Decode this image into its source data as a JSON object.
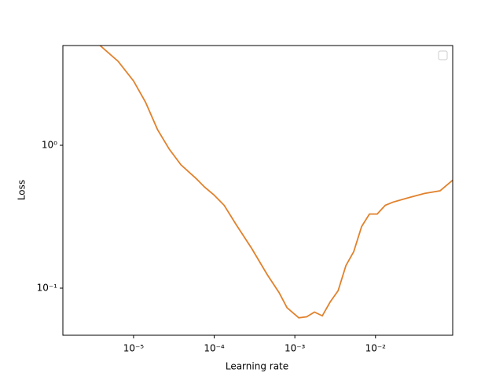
{
  "chart_data": {
    "type": "line",
    "xlabel": "Learning rate",
    "ylabel": "Loss",
    "x": [
      3.85e-06,
      6.44e-06,
      1e-05,
      1.41e-05,
      1.98e-05,
      2.77e-05,
      3.87e-05,
      6.07e-05,
      7.59e-05,
      9.9e-05,
      0.000133,
      0.000186,
      0.000291,
      0.000456,
      0.000638,
      0.0008,
      0.00112,
      0.0014,
      0.00175,
      0.00219,
      0.00274,
      0.00344,
      0.0043,
      0.00537,
      0.00673,
      0.00841,
      0.0105,
      0.0132,
      0.0165,
      0.0258,
      0.0405,
      0.0632,
      0.0906
    ],
    "series": [
      {
        "color": "#e1812c",
        "values": [
          4.99,
          3.87,
          2.82,
          2.0,
          1.29,
          0.94,
          0.73,
          0.58,
          0.51,
          0.45,
          0.38,
          0.28,
          0.19,
          0.124,
          0.093,
          0.073,
          0.062,
          0.063,
          0.068,
          0.064,
          0.08,
          0.096,
          0.144,
          0.18,
          0.27,
          0.33,
          0.33,
          0.38,
          0.4,
          0.43,
          0.46,
          0.48,
          0.57
        ]
      }
    ],
    "xscale": "log",
    "yscale": "log",
    "xlim": [
      1.33e-06,
      0.0906
    ],
    "ylim": [
      0.0468,
      4.99
    ],
    "xticks": [
      {
        "value": 1e-05,
        "label": "10⁻⁵"
      },
      {
        "value": 0.0001,
        "label": "10⁻⁴"
      },
      {
        "value": 0.001,
        "label": "10⁻³"
      },
      {
        "value": 0.01,
        "label": "10⁻²"
      }
    ],
    "yticks": [
      {
        "value": 0.1,
        "label": "10⁻¹"
      },
      {
        "value": 1,
        "label": "10⁰"
      }
    ]
  }
}
